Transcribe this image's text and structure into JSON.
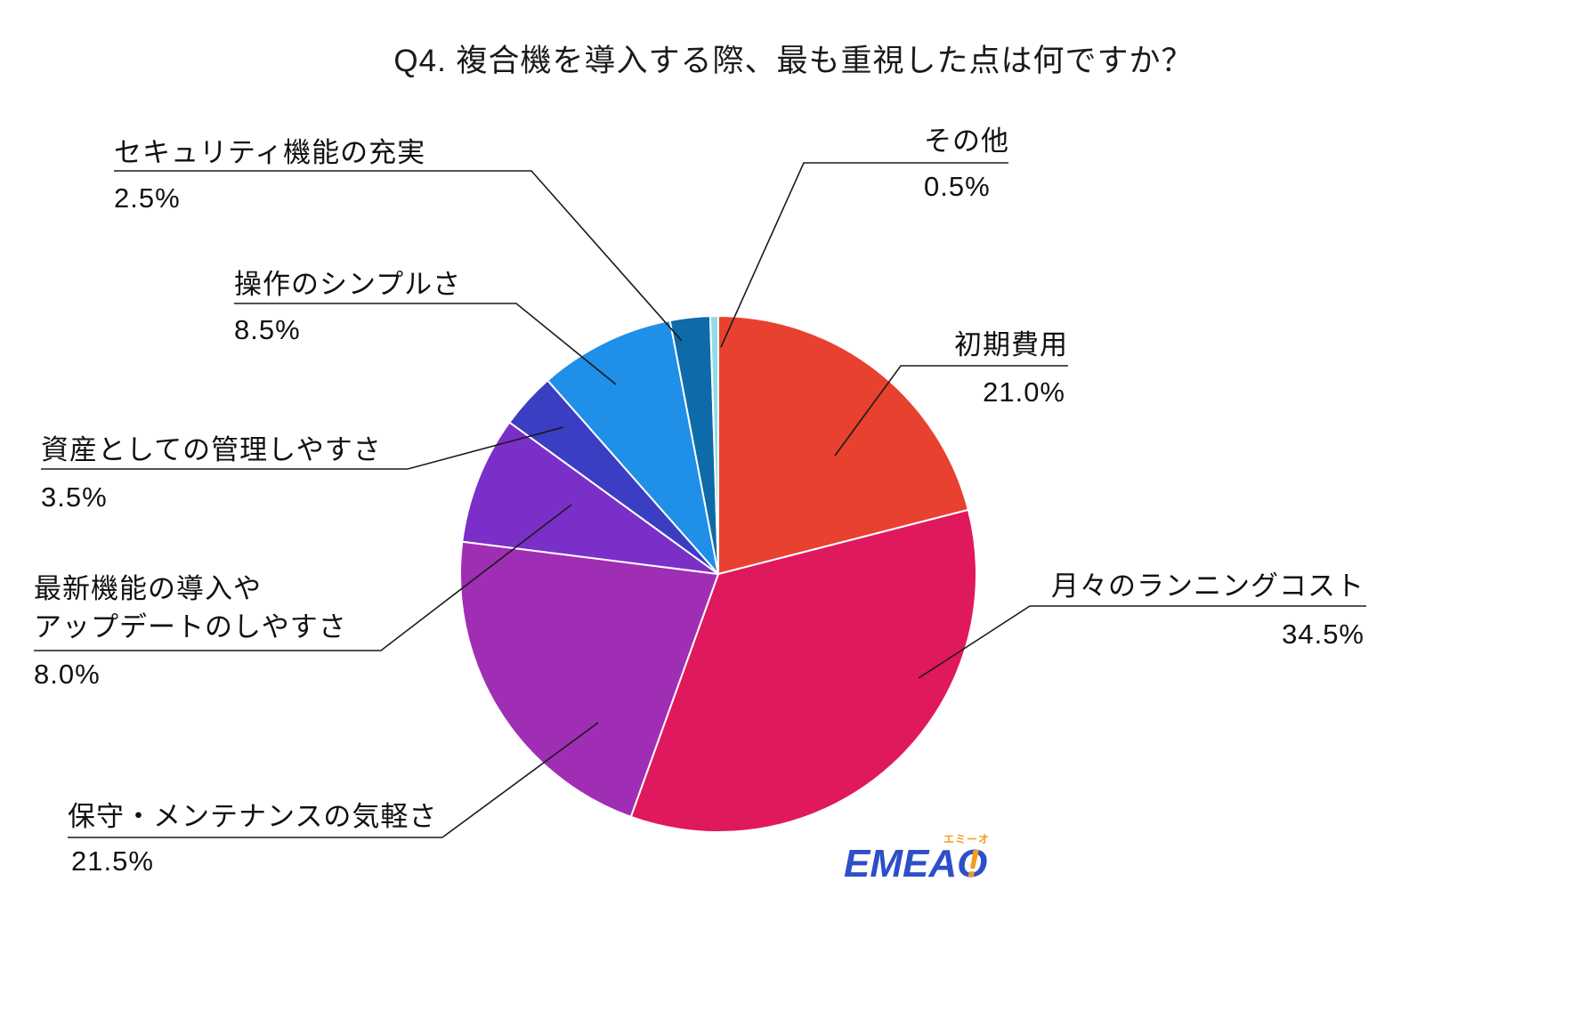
{
  "title": "Q4. 複合機を導入する際、最も重視した点は何ですか？",
  "logo": {
    "main": "EMEAO",
    "bang": "!",
    "ruby": "エミーオ"
  },
  "chart_data": {
    "type": "pie",
    "title": "Q4. 複合機を導入する際、最も重視した点は何ですか？",
    "start_angle_deg": 0,
    "direction": "clockwise",
    "legend_position": "none",
    "slices": [
      {
        "label": "初期費用",
        "value": 21.0,
        "display": "21.0%",
        "color": "#e8412f"
      },
      {
        "label": "月々のランニングコスト",
        "value": 34.5,
        "display": "34.5%",
        "color": "#e0185e"
      },
      {
        "label": "保守・メンテナンスの気軽さ",
        "value": 21.5,
        "display": "21.5%",
        "color": "#a02eb4"
      },
      {
        "label": "最新機能の導入やアップデートのしやすさ",
        "value": 8.0,
        "display": "8.0%",
        "color": "#7b2fc9",
        "label_lines": [
          "最新機能の導入や",
          "アップデートのしやすさ"
        ]
      },
      {
        "label": "資産としての管理しやすさ",
        "value": 3.5,
        "display": "3.5%",
        "color": "#3b3ec2"
      },
      {
        "label": "操作のシンプルさ",
        "value": 8.5,
        "display": "8.5%",
        "color": "#1f8fe8"
      },
      {
        "label": "セキュリティ機能の充実",
        "value": 2.5,
        "display": "2.5%",
        "color": "#0e6aa8"
      },
      {
        "label": "その他",
        "value": 0.5,
        "display": "0.5%",
        "color": "#8fdce8"
      }
    ]
  }
}
